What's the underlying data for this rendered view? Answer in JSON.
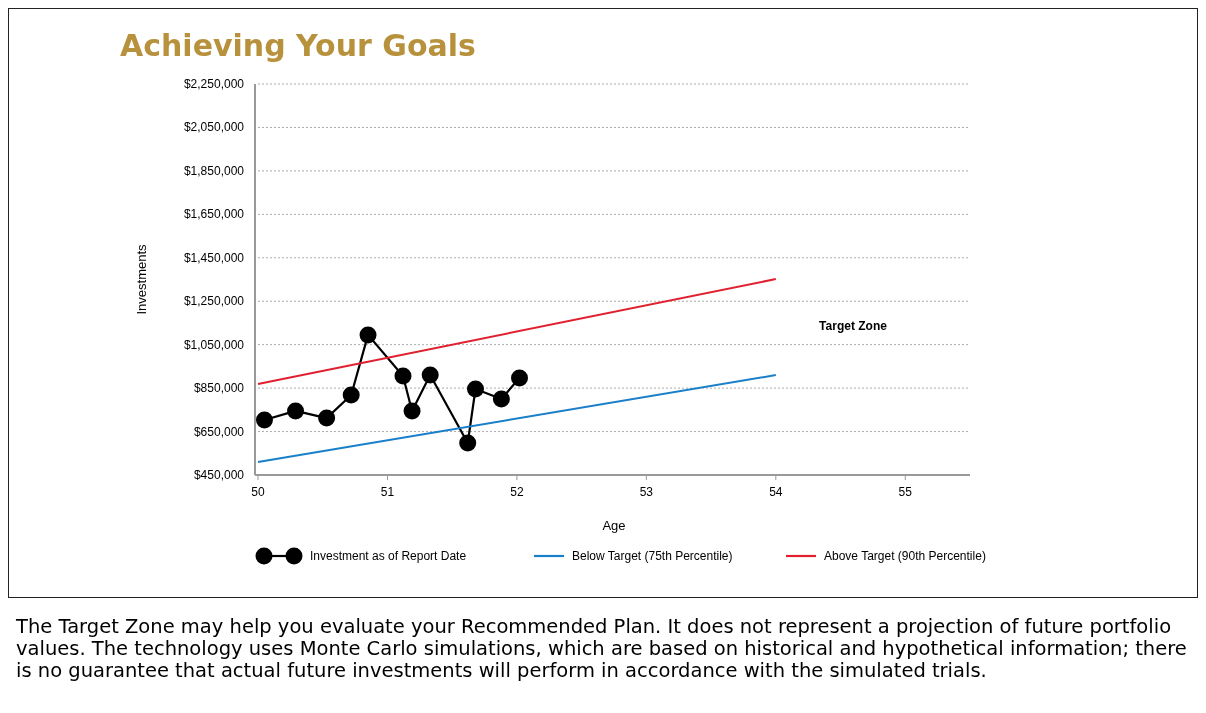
{
  "chart_data": {
    "type": "line",
    "title": "Achieving Your Goals",
    "xlabel": "Age",
    "ylabel": "Investments",
    "xlim": [
      50,
      55.5
    ],
    "xticks": [
      50,
      51,
      52,
      53,
      54,
      55
    ],
    "ylim": [
      450000,
      2250000
    ],
    "yticks": [
      {
        "value": 450000,
        "label": "$450,000"
      },
      {
        "value": 650000,
        "label": "$650,000"
      },
      {
        "value": 850000,
        "label": "$850,000"
      },
      {
        "value": 1050000,
        "label": "$1,050,000"
      },
      {
        "value": 1250000,
        "label": "$1,250,000"
      },
      {
        "value": 1450000,
        "label": "$1,450,000"
      },
      {
        "value": 1650000,
        "label": "$1,650,000"
      },
      {
        "value": 1850000,
        "label": "$1,850,000"
      },
      {
        "value": 2050000,
        "label": "$2,050,000"
      },
      {
        "value": 2250000,
        "label": "$2,250,000"
      }
    ],
    "grid": "y",
    "legend": "bottom",
    "series": [
      {
        "name": "Investment as of Report Date",
        "color": "#000000",
        "marker": "circle",
        "x": [
          50.05,
          50.29,
          50.53,
          50.72,
          50.85,
          51.12,
          51.19,
          51.33,
          51.62,
          51.68,
          51.88,
          52.02
        ],
        "values": [
          703000,
          745000,
          712000,
          818000,
          1095000,
          906000,
          745000,
          910000,
          597000,
          846000,
          800000,
          897000
        ]
      },
      {
        "name": "Below Target (75th Percentile)",
        "color": "#1a7fc9",
        "marker": "none",
        "x": [
          50,
          54
        ],
        "values": [
          510000,
          910000
        ]
      },
      {
        "name": "Above Target (90th Percentile)",
        "color": "#e0202f",
        "marker": "none",
        "x": [
          50,
          54
        ],
        "values": [
          869000,
          1352000
        ]
      }
    ],
    "annotations": [
      "Target Zone",
      "The Target Zone may help you evaluate your Recommended Plan. It does not represent a projection of future portfolio values. The technology uses Monte Carlo simulations, which are based on historical and hypothetical information; there is no guarantee that actual future investments will perform in accordance with the simulated trials."
    ]
  }
}
